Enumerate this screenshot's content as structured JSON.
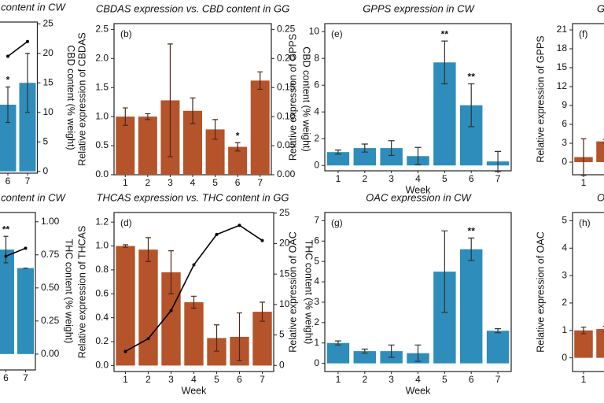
{
  "chart_data": [
    {
      "type": "bar",
      "title": "content in CW",
      "ylabel_side": "right",
      "ylabel": "CBD content (% weight)",
      "ylabel_color": "#111111",
      "categories": [
        "6",
        "7"
      ],
      "values": [
        11.3,
        15
      ],
      "errors": [
        3,
        5
      ],
      "color": "#2e8dbb",
      "error_color": "#333333",
      "significance": [
        "*",
        null
      ],
      "significance_color": "#2a6f9a",
      "line": {
        "values": [
          19.5,
          22
        ],
        "color": "#000000"
      },
      "ylim": [
        -0.3,
        25.3
      ],
      "yticks": [
        0,
        5,
        10,
        15,
        20,
        25
      ]
    },
    {
      "type": "bar",
      "title": "CBDAS expression vs. CBD content in GG",
      "label": "(b)",
      "ylabel": "Relative expression of CBDAS",
      "ylabel_color": "#a5481f",
      "y2label": "CBD content (% weight)",
      "categories": [
        "1",
        "2",
        "3",
        "4",
        "5",
        "6",
        "7"
      ],
      "values": [
        1.0,
        1.0,
        1.28,
        1.1,
        0.78,
        0.48,
        1.62
      ],
      "errors": [
        0.15,
        0.05,
        0.97,
        0.22,
        0.17,
        0.07,
        0.15
      ],
      "color": "#b5532b",
      "error_color": "#4a2a1a",
      "significance": [
        null,
        null,
        null,
        null,
        null,
        "*",
        null
      ],
      "significance_color": "#a5481f",
      "ylim": [
        0,
        2.6
      ],
      "yticks": [
        {
          "value": 0,
          "label": "0.0"
        },
        0.5,
        {
          "value": 1,
          "label": "1.0"
        },
        1.5,
        {
          "value": 2,
          "label": "2.0"
        },
        2.5
      ],
      "y2lim": [
        0,
        0.26
      ],
      "y2ticks": [
        {
          "value": 0,
          "label": "0.00"
        },
        0.05,
        {
          "value": 0.1,
          "label": "0.10"
        },
        0.15,
        {
          "value": 0.2,
          "label": "0.20"
        },
        0.25
      ]
    },
    {
      "type": "bar",
      "title": "GPPS expression in CW",
      "label": "(e)",
      "ylabel": "Relative expression of GPPS",
      "ylabel_color": "#2a7fb0",
      "xlabel": "Week",
      "categories": [
        "1",
        "2",
        "3",
        "4",
        "5",
        "6",
        "7"
      ],
      "values": [
        1.0,
        1.3,
        1.3,
        0.7,
        7.7,
        4.5,
        0.3
      ],
      "errors": [
        0.15,
        0.3,
        0.55,
        0.65,
        1.6,
        1.6,
        0.75
      ],
      "color": "#2e8dbb",
      "error_color": "#333333",
      "significance": [
        null,
        null,
        null,
        null,
        "**",
        "**",
        null
      ],
      "significance_color": "#2a6f9a",
      "ylim": [
        -0.4,
        10.6
      ],
      "yticks": [
        0,
        2,
        4,
        6,
        8,
        10
      ]
    },
    {
      "type": "bar",
      "title": "G",
      "label": "(f)",
      "ylabel": "Relative expression of GPPS",
      "ylabel_color": "#a5481f",
      "categories": [
        "1",
        null
      ],
      "values": [
        0.8,
        3.3
      ],
      "errors": [
        2.9,
        0.3
      ],
      "color": "#b5532b",
      "error_color": "#4a2a1a",
      "ylim": [
        -2,
        22
      ],
      "yticks": [
        0,
        3,
        6,
        9,
        12,
        15,
        18,
        21
      ]
    },
    {
      "type": "bar",
      "title": "content in CW",
      "ylabel_side": "right",
      "ylabel": "THC content (% weight)",
      "ylabel_color": "#111111",
      "categories": [
        "6",
        "7"
      ],
      "values": [
        0.79,
        0.65
      ],
      "errors": [
        0.1,
        0
      ],
      "color": "#2e8dbb",
      "error_color": "#333333",
      "significance": [
        "**",
        null
      ],
      "significance_color": "#2a6f9a",
      "line": {
        "values": [
          0.74,
          0.8
        ],
        "color": "#000000"
      },
      "ylim": [
        -0.12,
        1.07
      ],
      "yticks": [
        {
          "value": 0,
          "label": "0.00"
        },
        0.25,
        {
          "value": 0.5,
          "label": "0.50"
        },
        0.75,
        {
          "value": 1,
          "label": "1.00"
        }
      ]
    },
    {
      "type": "bar",
      "title": "THCAS expression vs. THC content in GG",
      "label": "(d)",
      "ylabel": "Relative expression of THCAS",
      "ylabel_color": "#a5481f",
      "y2label": "THC content (% weight)",
      "xlabel": "Week",
      "categories": [
        "1",
        "2",
        "3",
        "4",
        "5",
        "6",
        "7"
      ],
      "values": [
        1.0,
        0.97,
        0.78,
        0.53,
        0.23,
        0.24,
        0.45
      ],
      "errors": [
        0.01,
        0.1,
        0.18,
        0.05,
        0.11,
        0.2,
        0.08
      ],
      "color": "#b5532b",
      "error_color": "#4a2a1a",
      "line": {
        "values": [
          2.3,
          4.4,
          9,
          16.5,
          21.5,
          23,
          20.5
        ],
        "color": "#000000",
        "axis": "y2"
      },
      "ylim": [
        -0.05,
        1.28
      ],
      "yticks": [
        {
          "value": 0,
          "label": "0.0"
        },
        0.2,
        0.4,
        0.6,
        0.8,
        {
          "value": 1,
          "label": "1.0"
        },
        1.2
      ],
      "y2lim": [
        -1,
        25.1
      ],
      "y2ticks": [
        0,
        5,
        10,
        15,
        20,
        25
      ]
    },
    {
      "type": "bar",
      "title": "OAC expression in CW",
      "label": "(g)",
      "ylabel": "Relative expression of OAC",
      "ylabel_color": "#2a7fb0",
      "xlabel": "Week",
      "categories": [
        "1",
        "2",
        "3",
        "4",
        "5",
        "6",
        "7"
      ],
      "values": [
        1.0,
        0.6,
        0.6,
        0.5,
        4.5,
        5.6,
        1.6
      ],
      "errors": [
        0.1,
        0.1,
        0.3,
        0.4,
        2.0,
        0.55,
        0.1
      ],
      "color": "#2e8dbb",
      "error_color": "#333333",
      "significance": [
        null,
        null,
        null,
        null,
        null,
        "**",
        null
      ],
      "significance_color": "#2a6f9a",
      "ylim": [
        -0.4,
        7.4
      ],
      "yticks": [
        0,
        1,
        2,
        3,
        4,
        5,
        6,
        7
      ]
    },
    {
      "type": "bar",
      "title": "O",
      "label": "(h)",
      "ylabel": "Relative expression of OAC",
      "ylabel_color": "#a5481f",
      "categories": [
        "1",
        null
      ],
      "values": [
        1.0,
        1.05
      ],
      "errors": [
        0.12,
        0.1
      ],
      "color": "#b5532b",
      "error_color": "#4a2a1a",
      "ylim": [
        -0.5,
        5.3
      ],
      "yticks": [
        0,
        1,
        2,
        3,
        4,
        5
      ]
    }
  ]
}
